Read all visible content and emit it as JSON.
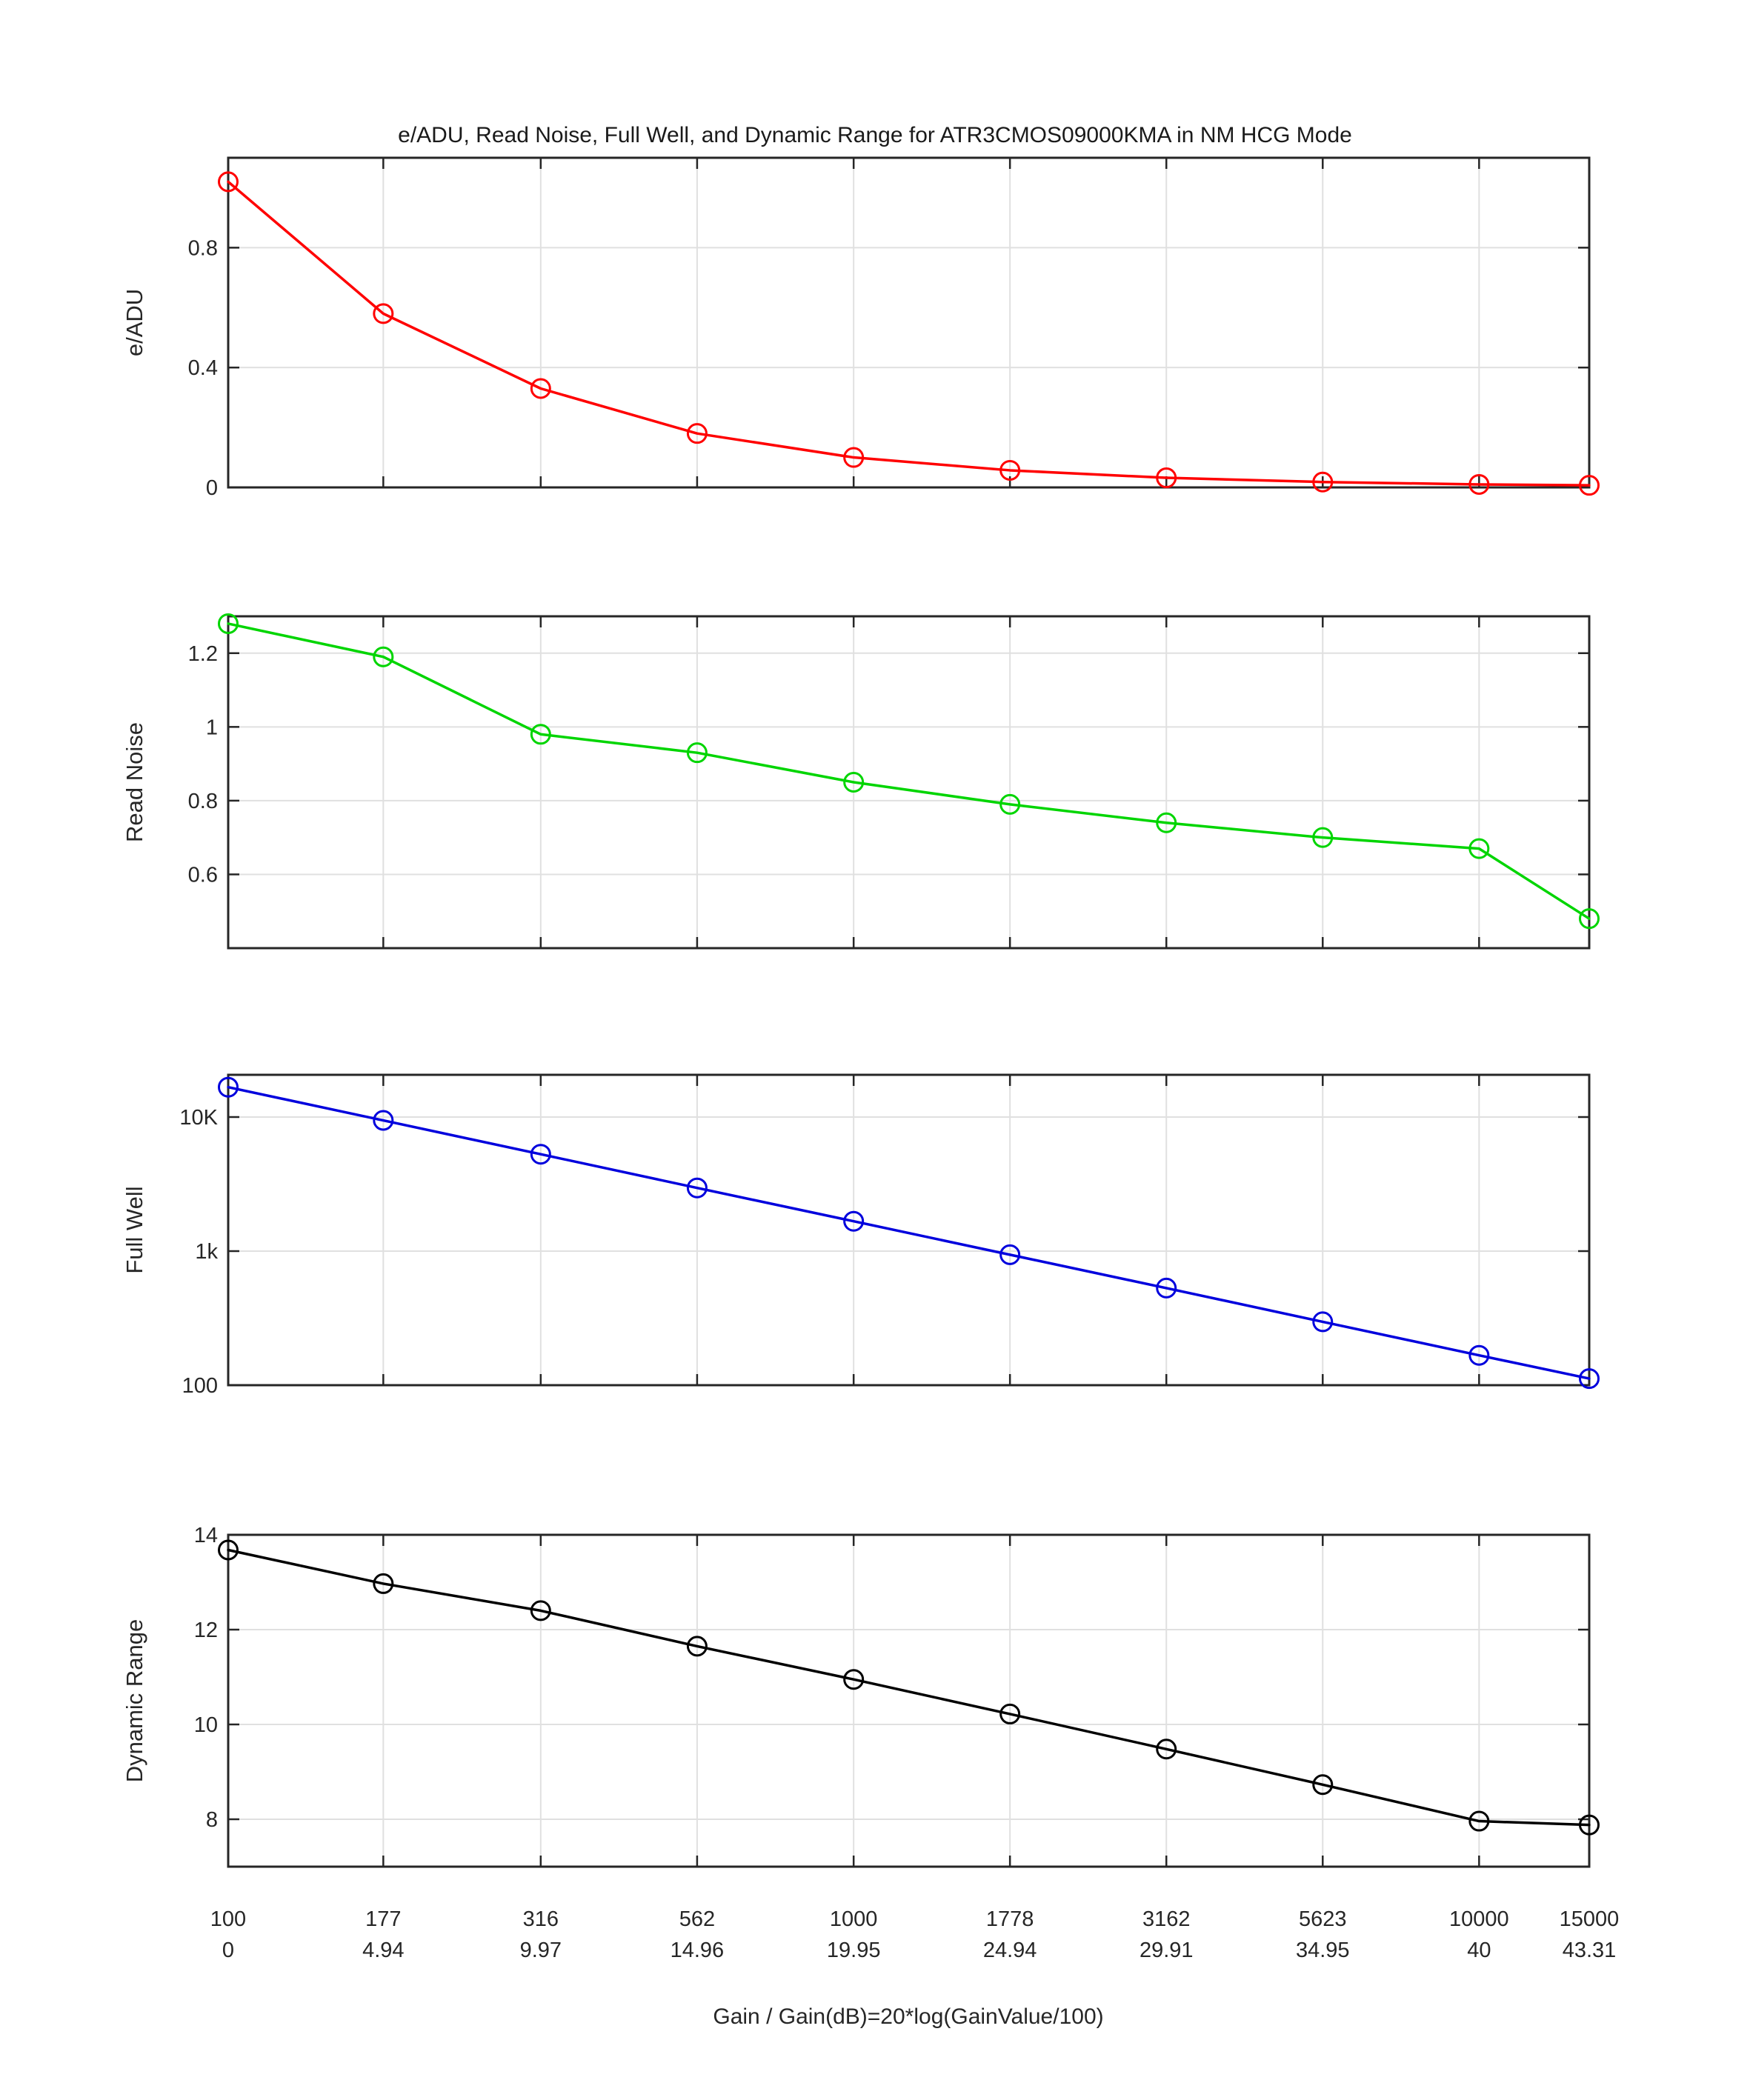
{
  "title": "e/ADU, Read Noise, Full Well, and Dynamic Range for ATR3CMOS09000KMA in NM HCG Mode",
  "chart_data": {
    "type": "line",
    "title": "e/ADU, Read Noise, Full Well, and Dynamic Range for ATR3CMOS09000KMA in NM HCG Mode",
    "xlabel": "Gain / Gain(dB)=20*log(GainValue/100)",
    "xscale": "log",
    "xlim": [
      100,
      15000
    ],
    "grid": true,
    "legend_position": "none",
    "marker": "open-circle",
    "x": [
      100,
      177,
      316,
      562,
      1000,
      1778,
      3162,
      5623,
      10000,
      15000
    ],
    "x_tick_labels_gain": [
      "100",
      "177",
      "316",
      "562",
      "1000",
      "1778",
      "3162",
      "5623",
      "10000",
      "15000"
    ],
    "x_tick_labels_db": [
      "0",
      "4.94",
      "9.97",
      "14.96",
      "19.95",
      "24.94",
      "29.91",
      "34.95",
      "40",
      "43.31"
    ],
    "subplots": [
      {
        "name": "e-adu",
        "ylabel": "e/ADU",
        "color": "#ff0000",
        "yscale": "linear",
        "ylim": [
          0,
          1.1
        ],
        "yticks": [
          0,
          0.4,
          0.8
        ],
        "ytick_labels": [
          "0",
          "0.4",
          "0.8"
        ],
        "values": [
          1.02,
          0.58,
          0.33,
          0.18,
          0.1,
          0.057,
          0.032,
          0.018,
          0.01,
          0.007
        ]
      },
      {
        "name": "read-noise",
        "ylabel": "Read Noise",
        "color": "#00d500",
        "yscale": "linear",
        "ylim": [
          0.4,
          1.3
        ],
        "yticks": [
          0.6,
          0.8,
          1,
          1.2
        ],
        "ytick_labels": [
          "0.6",
          "0.8",
          "1",
          "1.2"
        ],
        "values": [
          1.28,
          1.19,
          0.98,
          0.93,
          0.85,
          0.79,
          0.74,
          0.7,
          0.67,
          0.48
        ]
      },
      {
        "name": "full-well",
        "ylabel": "Full Well",
        "color": "#0000dd",
        "yscale": "log",
        "ylim": [
          100,
          20650
        ],
        "yticks": [
          100,
          1000,
          10000
        ],
        "ytick_labels": [
          "100",
          "1k",
          "10K"
        ],
        "values": [
          16700,
          9440,
          5280,
          2960,
          1670,
          940,
          530,
          297,
          167,
          112
        ]
      },
      {
        "name": "dynamic-range",
        "ylabel": "Dynamic Range",
        "color": "#000000",
        "yscale": "linear",
        "ylim": [
          7,
          14
        ],
        "yticks": [
          8,
          10,
          12,
          14
        ],
        "ytick_labels": [
          "8",
          "10",
          "12",
          "14"
        ],
        "values": [
          13.68,
          12.97,
          12.4,
          11.65,
          10.95,
          10.22,
          9.48,
          8.73,
          7.96,
          7.88
        ]
      }
    ]
  }
}
